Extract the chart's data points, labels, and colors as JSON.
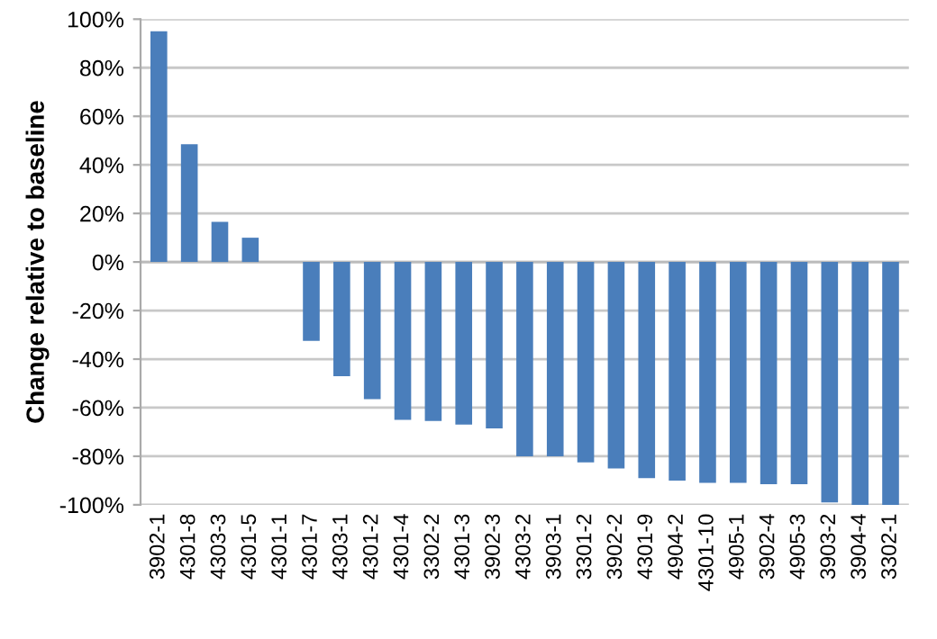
{
  "chart_data": {
    "type": "bar",
    "ylabel": "Change relative to baseline",
    "categories": [
      "3902-1",
      "4301-8",
      "4303-3",
      "4301-5",
      "4301-1",
      "4301-7",
      "4303-1",
      "4301-2",
      "4301-4",
      "3302-2",
      "4301-3",
      "3902-3",
      "4303-2",
      "3903-1",
      "3301-2",
      "3902-2",
      "4301-9",
      "4904-2",
      "4301-10",
      "4905-1",
      "3902-4",
      "4905-3",
      "3903-2",
      "3904-4",
      "3302-1"
    ],
    "values": [
      95,
      48.5,
      16.5,
      10,
      0,
      -32.5,
      -47,
      -56.5,
      -65,
      -65.5,
      -67,
      -68.5,
      -80,
      -80,
      -82.5,
      -85,
      -89,
      -90,
      -91,
      -91,
      -91.5,
      -91.5,
      -99,
      -100,
      -100
    ],
    "color": "#4a7ebb",
    "ylim": [
      -100,
      100
    ],
    "yticks": [
      {
        "value": -100,
        "label": "-100%"
      },
      {
        "value": -80,
        "label": "-80%"
      },
      {
        "value": -60,
        "label": "-60%"
      },
      {
        "value": -40,
        "label": "-40%"
      },
      {
        "value": -20,
        "label": "-20%"
      },
      {
        "value": 0,
        "label": "0%"
      },
      {
        "value": 20,
        "label": "20%"
      },
      {
        "value": 40,
        "label": "40%"
      },
      {
        "value": 60,
        "label": "60%"
      },
      {
        "value": 80,
        "label": "80%"
      },
      {
        "value": 100,
        "label": "100%"
      }
    ],
    "grid": "y"
  }
}
